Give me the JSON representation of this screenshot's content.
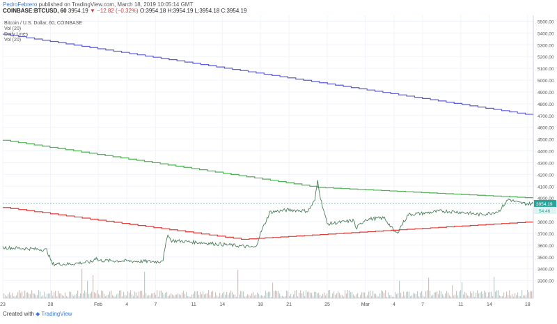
{
  "header": {
    "author": "PedroFebrero",
    "published": "published on TradingView.com, March 18, 2019 10:05:14 GMT",
    "symbol": "COINBASE:BTCUSD, 60",
    "quote_last": "3954.19",
    "quote_change": "▼ −12.82 (−0.32%)",
    "quote_ohlc": "O:3954.18 H:3954.19 L:3954.18 C:3954.19"
  },
  "legend": {
    "title": "Bitcoin / U.S. Dollar, 60, COINBASE",
    "line2": "Vol (20)",
    "line3": "Daily Lines",
    "line4": "Vol (20)"
  },
  "footer": {
    "prefix": "Created with",
    "brand": "TradingView"
  },
  "colors": {
    "up": "#26a69a",
    "down": "#ef5350",
    "blue_line": "#5b5bd6",
    "green_line": "#4caf50",
    "red_line": "#e53935",
    "price_badge": "#26a69a"
  },
  "chart_data": {
    "type": "line",
    "title": "Bitcoin / U.S. Dollar, 60, COINBASE",
    "ylim": [
      3150,
      5550
    ],
    "yticks": [
      3300,
      3400,
      3500,
      3600,
      3700,
      3800,
      3900,
      4000,
      4100,
      4200,
      4300,
      4400,
      4500,
      4600,
      4700,
      4800,
      4900,
      5000,
      5100,
      5200,
      5300,
      5400,
      5500
    ],
    "x_tick_labels": [
      "23",
      "28",
      "Feb",
      "4",
      "7",
      "11",
      "14",
      "18",
      "21",
      "25",
      "Mar",
      "4",
      "7",
      "11",
      "14",
      "18"
    ],
    "x_tick_positions": [
      0.0,
      5,
      10,
      13,
      16,
      20,
      23,
      27,
      30,
      34,
      38,
      41,
      44,
      48,
      51,
      55
    ],
    "x_domain": [
      0,
      55.6
    ],
    "last_price": "3954.19",
    "countdown": "54:46",
    "price_series": {
      "name": "BTCUSD",
      "x": [
        0,
        3,
        4.6,
        5.2,
        7,
        9.4,
        9.8,
        10,
        16.4,
        16.8,
        17.3,
        17.6,
        21,
        24,
        26.5,
        27,
        28,
        30,
        32,
        32.7,
        33,
        33.3,
        34,
        36,
        36.8,
        37,
        38,
        40,
        41,
        41.3,
        41.8,
        42.5,
        44,
        46,
        48,
        50,
        51,
        52,
        53,
        54,
        55,
        55.6
      ],
      "y": [
        3580,
        3570,
        3560,
        3440,
        3440,
        3460,
        3500,
        3470,
        3460,
        3480,
        3700,
        3640,
        3620,
        3600,
        3580,
        3700,
        3880,
        3900,
        3890,
        3980,
        4150,
        4000,
        3780,
        3800,
        3810,
        3740,
        3820,
        3830,
        3720,
        3700,
        3770,
        3860,
        3870,
        3890,
        3880,
        3860,
        3870,
        3890,
        3990,
        3960,
        3950,
        3954
      ]
    },
    "lines": [
      {
        "name": "blue",
        "x": [
          0,
          55.6
        ],
        "y": [
          5390,
          4700
        ]
      },
      {
        "name": "green",
        "x": [
          0,
          33,
          55.6
        ],
        "y": [
          4490,
          4090,
          4000
        ]
      },
      {
        "name": "red",
        "x": [
          0,
          25,
          55.6
        ],
        "y": [
          3920,
          3650,
          3800
        ]
      }
    ],
    "volume_max": 380,
    "volume_scale": "spikes near Feb 8, Feb 18–24, Mar 10–18"
  }
}
